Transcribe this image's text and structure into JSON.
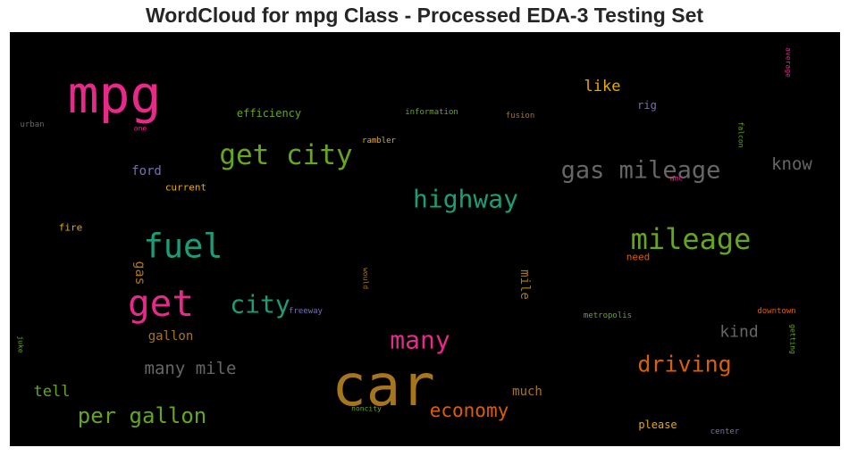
{
  "chart_data": {
    "type": "wordcloud",
    "title": "WordCloud for mpg Class - Processed EDA-3 Testing Set",
    "background": "#000000",
    "colormap": [
      "#e7298a",
      "#1b9e77",
      "#66a61e",
      "#d95f02",
      "#7570b3",
      "#a6761d",
      "#e6ab02",
      "#666666"
    ],
    "words": [
      {
        "text": "car",
        "size": 64,
        "color": "#a6761d",
        "orientation": "horizontal"
      },
      {
        "text": "mpg",
        "size": 58,
        "color": "#e7298a",
        "orientation": "horizontal"
      },
      {
        "text": "get",
        "size": 41,
        "color": "#e7298a",
        "orientation": "horizontal"
      },
      {
        "text": "fuel",
        "size": 37,
        "color": "#1b9e77",
        "orientation": "horizontal"
      },
      {
        "text": "mileage",
        "size": 32,
        "color": "#66a61e",
        "orientation": "horizontal"
      },
      {
        "text": "get city",
        "size": 31,
        "color": "#66a61e",
        "orientation": "horizontal"
      },
      {
        "text": "city",
        "size": 28,
        "color": "#1b9e77",
        "orientation": "horizontal"
      },
      {
        "text": "gas mileage",
        "size": 27,
        "color": "#666666",
        "orientation": "horizontal"
      },
      {
        "text": "highway",
        "size": 28,
        "color": "#1b9e77",
        "orientation": "horizontal"
      },
      {
        "text": "many",
        "size": 28,
        "color": "#e7298a",
        "orientation": "horizontal"
      },
      {
        "text": "driving",
        "size": 25,
        "color": "#d95f02",
        "orientation": "horizontal"
      },
      {
        "text": "per gallon",
        "size": 24,
        "color": "#66a61e",
        "orientation": "horizontal"
      },
      {
        "text": "economy",
        "size": 21,
        "color": "#d95f02",
        "orientation": "horizontal"
      },
      {
        "text": "many mile",
        "size": 19,
        "color": "#666666",
        "orientation": "horizontal"
      },
      {
        "text": "know",
        "size": 19,
        "color": "#666666",
        "orientation": "horizontal"
      },
      {
        "text": "kind",
        "size": 18,
        "color": "#666666",
        "orientation": "horizontal"
      },
      {
        "text": "like",
        "size": 17,
        "color": "#e6ab02",
        "orientation": "horizontal"
      },
      {
        "text": "tell",
        "size": 17,
        "color": "#66a61e",
        "orientation": "horizontal"
      },
      {
        "text": "gas",
        "size": 15,
        "color": "#a6761d",
        "orientation": "vertical"
      },
      {
        "text": "mile",
        "size": 14,
        "color": "#a6761d",
        "orientation": "vertical"
      },
      {
        "text": "gallon",
        "size": 14,
        "color": "#a6761d",
        "orientation": "horizontal"
      },
      {
        "text": "much",
        "size": 14,
        "color": "#a6761d",
        "orientation": "horizontal"
      },
      {
        "text": "ford",
        "size": 14,
        "color": "#7570b3",
        "orientation": "horizontal"
      },
      {
        "text": "efficiency",
        "size": 12,
        "color": "#66a61e",
        "orientation": "horizontal"
      },
      {
        "text": "please",
        "size": 12,
        "color": "#e6ab02",
        "orientation": "horizontal"
      },
      {
        "text": "rig",
        "size": 12,
        "color": "#7570b3",
        "orientation": "horizontal"
      },
      {
        "text": "current",
        "size": 11,
        "color": "#e6ab02",
        "orientation": "horizontal"
      },
      {
        "text": "fire",
        "size": 11,
        "color": "#e6ab02",
        "orientation": "horizontal"
      },
      {
        "text": "need",
        "size": 11,
        "color": "#d95f02",
        "orientation": "horizontal"
      },
      {
        "text": "information",
        "size": 9,
        "color": "#66a61e",
        "orientation": "horizontal"
      },
      {
        "text": "fusion",
        "size": 9,
        "color": "#a6761d",
        "orientation": "horizontal"
      },
      {
        "text": "rambler",
        "size": 9,
        "color": "#e6ab02",
        "orientation": "horizontal"
      },
      {
        "text": "freeway",
        "size": 9,
        "color": "#7570b3",
        "orientation": "horizontal"
      },
      {
        "text": "metropolis",
        "size": 9,
        "color": "#66a61e",
        "orientation": "horizontal"
      },
      {
        "text": "downtown",
        "size": 9,
        "color": "#d95f02",
        "orientation": "horizontal"
      },
      {
        "text": "noncity",
        "size": 8,
        "color": "#66a61e",
        "orientation": "horizontal"
      },
      {
        "text": "center",
        "size": 9,
        "color": "#7570b3",
        "orientation": "horizontal"
      },
      {
        "text": "urban",
        "size": 9,
        "color": "#666666",
        "orientation": "horizontal"
      },
      {
        "text": "one",
        "size": 8,
        "color": "#e7298a",
        "orientation": "horizontal"
      },
      {
        "text": "amc",
        "size": 8,
        "color": "#e7298a",
        "orientation": "horizontal"
      },
      {
        "text": "average",
        "size": 8,
        "color": "#e7298a",
        "orientation": "vertical"
      },
      {
        "text": "falcon",
        "size": 8,
        "color": "#66a61e",
        "orientation": "vertical"
      },
      {
        "text": "would",
        "size": 8,
        "color": "#a6761d",
        "orientation": "vertical"
      },
      {
        "text": "juke",
        "size": 8,
        "color": "#66a61e",
        "orientation": "vertical"
      },
      {
        "text": "getting",
        "size": 8,
        "color": "#66a61e",
        "orientation": "vertical"
      }
    ]
  }
}
